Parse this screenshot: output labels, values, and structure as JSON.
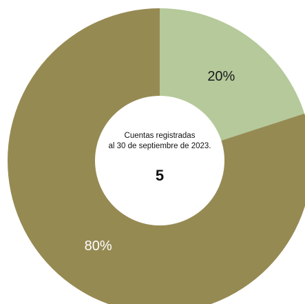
{
  "chart_data": {
    "type": "pie",
    "donut": true,
    "slices": [
      {
        "value": 20,
        "label": "20%",
        "color": "#b5c99a",
        "label_color": "#1a1a1a"
      },
      {
        "value": 80,
        "label": "80%",
        "color": "#968a53",
        "label_color": "#ffffff"
      }
    ],
    "center": {
      "caption_line1": "Cuentas registradas",
      "caption_line2": "al 30 de septiembre de 2023.",
      "value": "5"
    },
    "legend": "none"
  }
}
